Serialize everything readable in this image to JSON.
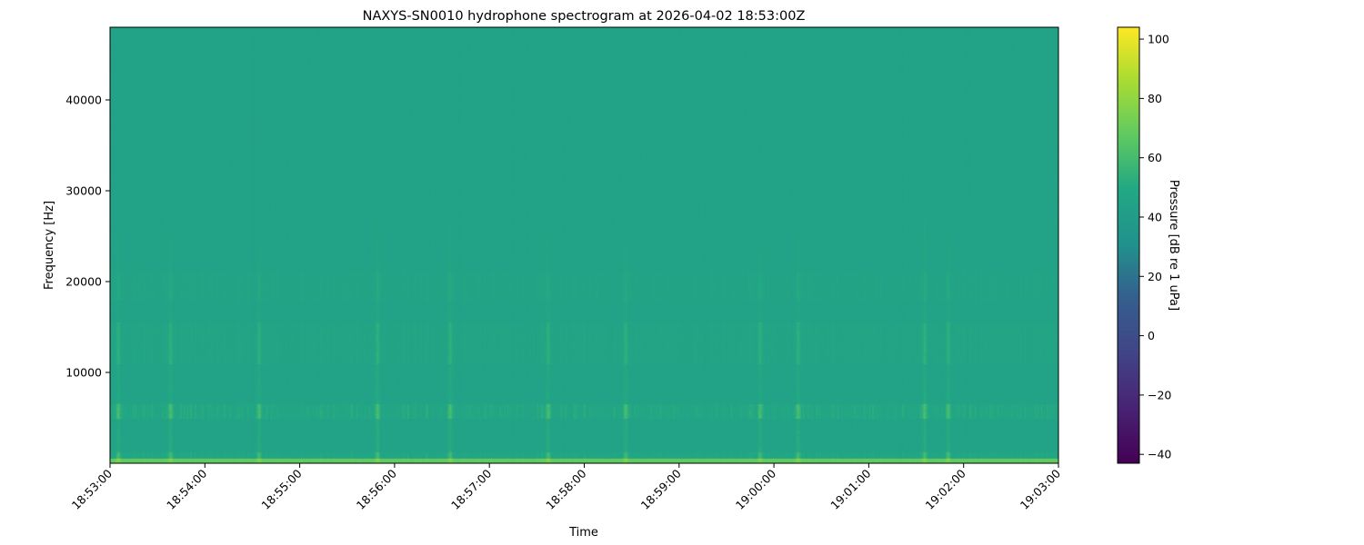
{
  "chart_data": {
    "type": "heatmap",
    "title": "NAXYS-SN0010 hydrophone spectrogram at 2026-04-02 18:53:00Z",
    "xlabel": "Time",
    "ylabel": "Frequency [Hz]",
    "colorbar_label": "Pressure [dB re 1 uPa]",
    "colormap": "viridis",
    "xlim": [
      "18:53:00",
      "19:03:00"
    ],
    "ylim": [
      0,
      48000
    ],
    "clim": [
      -43,
      104
    ],
    "x_ticks": [
      "18:53:00",
      "18:54:00",
      "18:55:00",
      "18:56:00",
      "18:57:00",
      "18:58:00",
      "18:59:00",
      "19:00:00",
      "19:01:00",
      "19:02:00",
      "19:03:00"
    ],
    "y_ticks": [
      10000,
      20000,
      30000,
      40000
    ],
    "y_tick_labels": [
      "10000",
      "20000",
      "30000",
      "40000"
    ],
    "colorbar_ticks": [
      100,
      80,
      60,
      40,
      20,
      0,
      -20,
      -40
    ],
    "colorbar_tick_labels": [
      "100",
      "80",
      "60",
      "40",
      "20",
      "0",
      "−20",
      "−40"
    ],
    "background_level_db": 45,
    "bands": [
      {
        "f_low": 0,
        "f_high": 500,
        "level_db": 68
      },
      {
        "f_low": 500,
        "f_high": 1200,
        "level_db": 55
      },
      {
        "f_low": 5000,
        "f_high": 6500,
        "level_db": 58
      },
      {
        "f_low": 11000,
        "f_high": 15500,
        "level_db": 51
      },
      {
        "f_low": 18000,
        "f_high": 21000,
        "level_db": 49
      }
    ],
    "transient_events": [
      "18:53:05",
      "18:53:38",
      "18:54:34",
      "18:55:49",
      "18:56:35",
      "18:57:37",
      "18:58:26",
      "18:59:51",
      "19:00:15",
      "19:01:35",
      "19:01:50"
    ],
    "transient_peak_db": 72
  }
}
